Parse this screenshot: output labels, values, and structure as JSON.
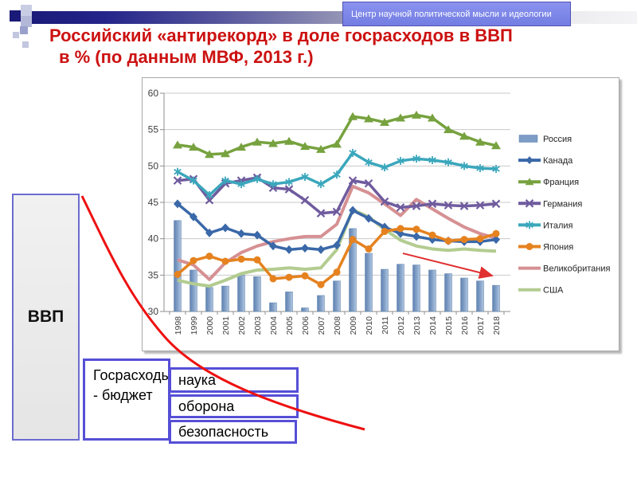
{
  "slide": {
    "badge": "Центр научной политической мысли и идеологии",
    "title_line1": "Российский «антирекорд» в доле госрасходов в ВВП",
    "title_line2": "в % (по данным МВФ, 2013 г.)"
  },
  "diagram": {
    "gdp_box": "ВВП",
    "budget_box": "Госрасходы - бюджет",
    "items": [
      "наука",
      "оборона",
      "безопасность"
    ]
  },
  "colors": {
    "title_red": "#cc1111",
    "annotation_red": "#e21717",
    "box_border_blue": "#564fd6",
    "badge_bg": "#7d87e8"
  },
  "chart_data": {
    "type": "combo bar+line",
    "x": [
      1998,
      1999,
      2000,
      2001,
      2002,
      2003,
      2004,
      2005,
      2006,
      2007,
      2008,
      2009,
      2010,
      2011,
      2012,
      2013,
      2014,
      2015,
      2016,
      2017,
      2018
    ],
    "ylim": [
      30,
      60
    ],
    "ytick_step": 5,
    "grid": true,
    "legend_position": "right",
    "annotation": "red declining trend arrow over Russia bars, 2012-2018",
    "series": [
      {
        "name": "Россия",
        "type": "bar",
        "marker": "none",
        "color": "#7d9cc6",
        "values": [
          42.5,
          35.7,
          33.3,
          33.5,
          35.0,
          34.8,
          31.2,
          32.7,
          30.5,
          32.2,
          34.2,
          41.4,
          38.0,
          35.8,
          36.5,
          36.4,
          35.7,
          35.2,
          34.6,
          34.2,
          33.6
        ]
      },
      {
        "name": "Канада",
        "type": "line",
        "marker": "diamond",
        "color": "#3a68a8",
        "values": [
          44.8,
          43.0,
          40.8,
          41.5,
          40.7,
          40.5,
          39.0,
          38.5,
          38.7,
          38.5,
          39.1,
          43.9,
          42.8,
          41.6,
          40.7,
          40.3,
          39.9,
          39.7,
          39.6,
          39.6,
          39.9
        ]
      },
      {
        "name": "Франция",
        "type": "line",
        "marker": "triangle",
        "color": "#77a23f",
        "values": [
          52.9,
          52.6,
          51.6,
          51.7,
          52.6,
          53.3,
          53.1,
          53.4,
          52.7,
          52.3,
          53.0,
          56.8,
          56.5,
          56.0,
          56.6,
          57.0,
          56.6,
          55.0,
          54.1,
          53.3,
          52.8
        ]
      },
      {
        "name": "Германия",
        "type": "line",
        "marker": "x",
        "color": "#6f5b9e",
        "values": [
          48.0,
          48.2,
          45.3,
          47.6,
          48.0,
          48.4,
          47.0,
          46.8,
          45.3,
          43.5,
          43.7,
          48.0,
          47.6,
          45.1,
          44.3,
          44.5,
          44.8,
          44.6,
          44.5,
          44.6,
          44.8
        ]
      },
      {
        "name": "Италия",
        "type": "line",
        "marker": "asterisk",
        "color": "#3ba7bc",
        "values": [
          49.2,
          48.0,
          46.0,
          48.0,
          47.5,
          48.2,
          47.5,
          47.8,
          48.5,
          47.5,
          48.8,
          51.8,
          50.5,
          49.8,
          50.7,
          51.0,
          50.8,
          50.5,
          50.0,
          49.7,
          49.6
        ]
      },
      {
        "name": "Япония",
        "type": "line",
        "marker": "circle",
        "color": "#e5821f",
        "values": [
          35.1,
          37.0,
          37.6,
          36.9,
          37.2,
          37.1,
          34.5,
          34.7,
          34.9,
          33.7,
          35.4,
          39.9,
          38.6,
          41.0,
          41.4,
          41.3,
          40.5,
          39.7,
          39.9,
          40.0,
          40.7
        ]
      },
      {
        "name": "Великобритания",
        "type": "line",
        "marker": "none",
        "color": "#d69093",
        "values": [
          37.1,
          36.4,
          34.4,
          36.7,
          38.1,
          39.0,
          39.6,
          40.0,
          40.3,
          40.3,
          42.0,
          47.2,
          46.3,
          44.8,
          43.2,
          45.4,
          44.1,
          42.8,
          41.6,
          40.7,
          40.1
        ]
      },
      {
        "name": "США",
        "type": "line",
        "marker": "none",
        "color": "#b3cc90",
        "values": [
          34.3,
          33.8,
          33.5,
          34.3,
          35.2,
          35.7,
          35.8,
          36.0,
          35.8,
          36.0,
          38.5,
          44.0,
          43.0,
          41.3,
          39.8,
          39.0,
          38.6,
          38.4,
          38.6,
          38.4,
          38.3
        ]
      }
    ]
  }
}
